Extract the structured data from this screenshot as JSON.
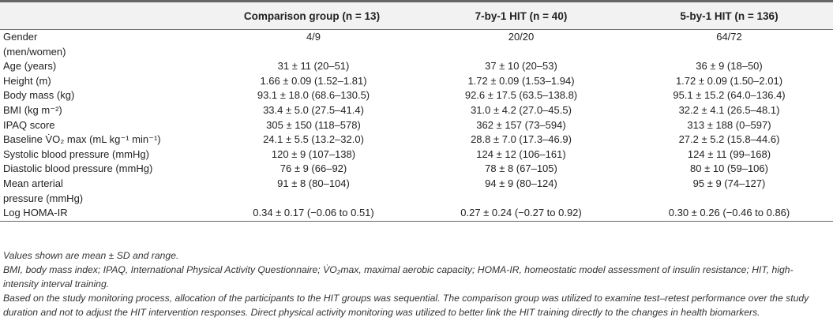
{
  "table": {
    "headers": [
      {
        "id": "label",
        "text": ""
      },
      {
        "id": "comparison",
        "text": "Comparison group (n = 13)"
      },
      {
        "id": "hit7",
        "text": "7-by-1 HIT (n = 40)"
      },
      {
        "id": "hit5",
        "text": "5-by-1 HIT (n = 136)"
      }
    ],
    "rows": [
      {
        "label": "Gender\n(men/women)",
        "values": [
          "4/9",
          "20/20",
          "64/72"
        ],
        "tall": true
      },
      {
        "label": "Age (years)",
        "values": [
          "31 ± 11 (20–51)",
          "37 ± 10 (20–53)",
          "36 ± 9 (18–50)"
        ]
      },
      {
        "label": "Height (m)",
        "values": [
          "1.66 ± 0.09 (1.52–1.81)",
          "1.72 ± 0.09 (1.53–1.94)",
          "1.72 ± 0.09 (1.50–2.01)"
        ]
      },
      {
        "label": "Body mass (kg)",
        "values": [
          "93.1 ± 18.0 (68.6–130.5)",
          "92.6 ± 17.5 (63.5–138.8)",
          "95.1 ± 15.2 (64.0–136.4)"
        ]
      },
      {
        "label": "BMI (kg m⁻²)",
        "values": [
          "33.4 ± 5.0 (27.5–41.4)",
          "31.0 ± 4.2 (27.0–45.5)",
          "32.2 ± 4.1 (26.5–48.1)"
        ]
      },
      {
        "label": "IPAQ score",
        "values": [
          "305 ± 150 (118–578)",
          "362 ± 157 (73–594)",
          "313 ± 188 (0–597)"
        ]
      },
      {
        "label": "Baseline V̇O₂ max (mL kg⁻¹ min⁻¹)",
        "values": [
          "24.1 ± 5.5 (13.2–32.0)",
          "28.8 ± 7.0 (17.3–46.9)",
          "27.2 ± 5.2 (15.8–44.6)"
        ]
      },
      {
        "label": "Systolic blood pressure (mmHg)",
        "values": [
          "120 ± 9 (107–138)",
          "124 ± 12 (106–161)",
          "124 ± 11 (99–168)"
        ]
      },
      {
        "label": "Diastolic blood pressure (mmHg)",
        "values": [
          "76 ± 9 (66–92)",
          "78 ± 8 (67–105)",
          "80 ± 10 (59–106)"
        ]
      },
      {
        "label": "Mean arterial\npressure (mmHg)",
        "values": [
          "91 ± 8 (80–104)",
          "94 ± 9 (80–124)",
          "95 ± 9 (74–127)"
        ],
        "tall": true
      },
      {
        "label": "Log HOMA-IR",
        "values": [
          "0.34 ± 0.17 (−0.06 to 0.51)",
          "0.27 ± 0.24 (−0.27 to 0.92)",
          "0.30 ± 0.26 (−0.46 to 0.86)"
        ]
      }
    ]
  },
  "notes": [
    "Values shown are mean ± SD and range.",
    "BMI, body mass index; IPAQ, International Physical Activity Questionnaire; V̇O₂max, maximal aerobic capacity; HOMA-IR, homeostatic model assessment of insulin resistance; HIT, high-intensity interval training.",
    "Based on the study monitoring process, allocation of the participants to the HIT groups was sequential. The comparison group was utilized to examine test–retest performance over the study duration and not to adjust the HIT intervention responses. Direct physical activity monitoring was utilized to better link the HIT training directly to the changes in health biomarkers."
  ]
}
